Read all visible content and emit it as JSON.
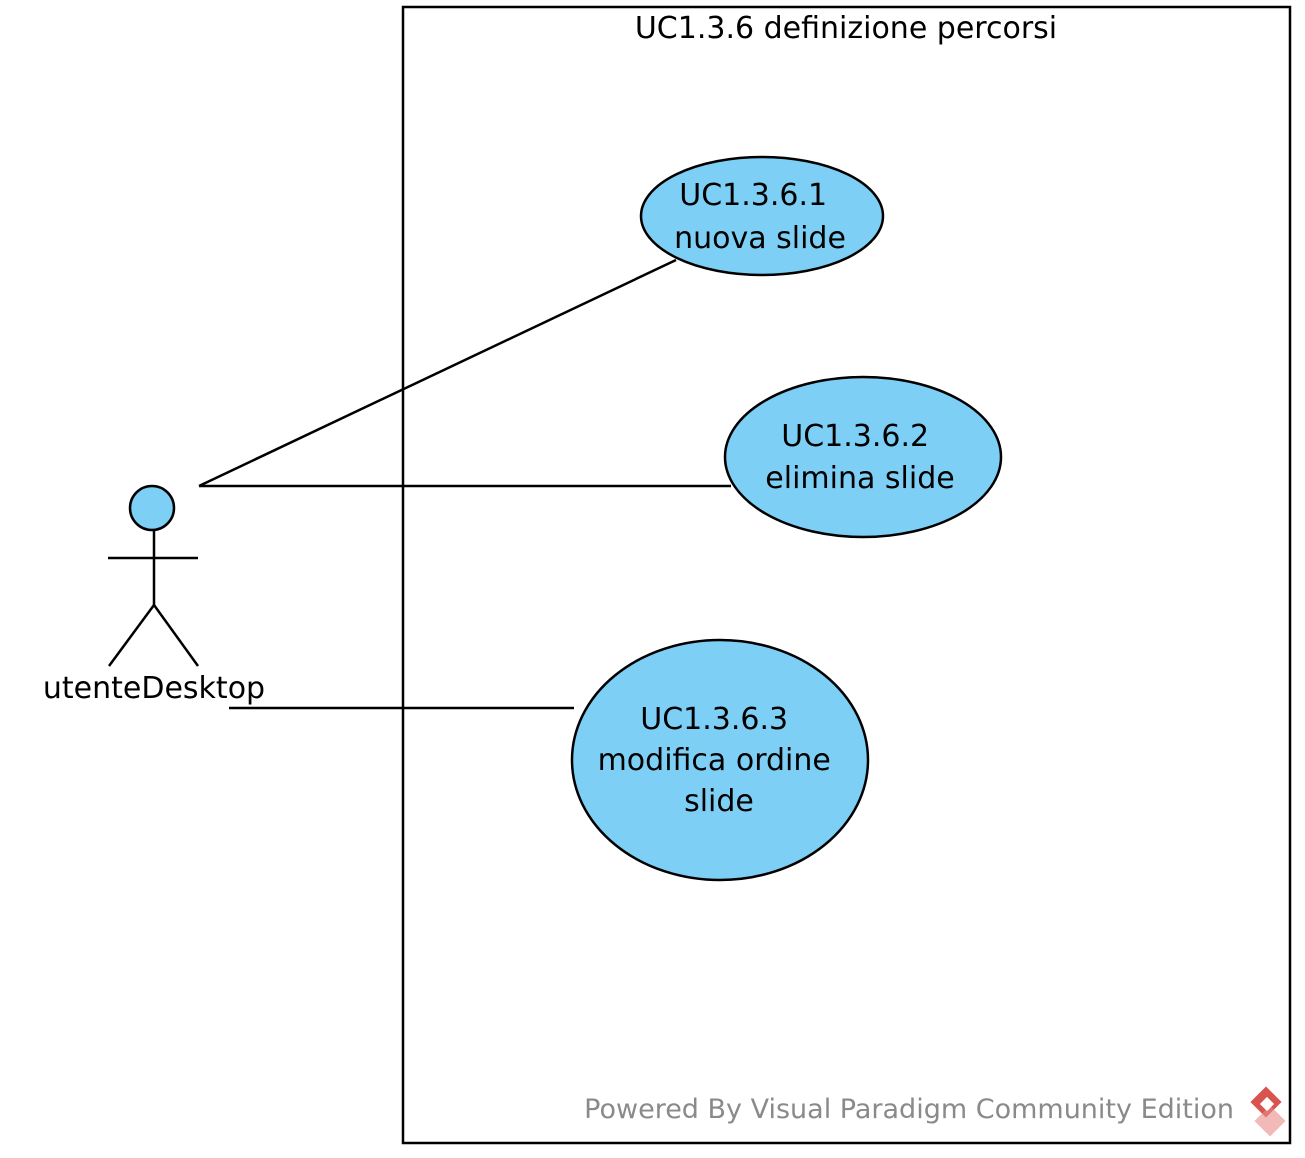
{
  "colors": {
    "fill": "#7dcff5",
    "stroke": "#000000",
    "background": "#ffffff",
    "watermark": "#8a8a8a",
    "logo": "#d9534f"
  },
  "system": {
    "title": "UC1.3.6 definizione percorsi"
  },
  "actor": {
    "name": "utenteDesktop",
    "icon": "stick-figure-icon"
  },
  "use_cases": [
    {
      "lines": [
        "UC1.3.6.1",
        "nuova slide"
      ]
    },
    {
      "lines": [
        "UC1.3.6.2",
        "elimina slide"
      ]
    },
    {
      "lines": [
        "UC1.3.6.3",
        "modifica ordine",
        "slide"
      ]
    }
  ],
  "associations": [
    {
      "from": "utenteDesktop",
      "to": "UC1.3.6.1"
    },
    {
      "from": "utenteDesktop",
      "to": "UC1.3.6.2"
    },
    {
      "from": "utenteDesktop",
      "to": "UC1.3.6.3"
    }
  ],
  "watermark": {
    "text": "Powered By Visual Paradigm Community Edition",
    "icon": "visual-paradigm-logo-icon"
  }
}
